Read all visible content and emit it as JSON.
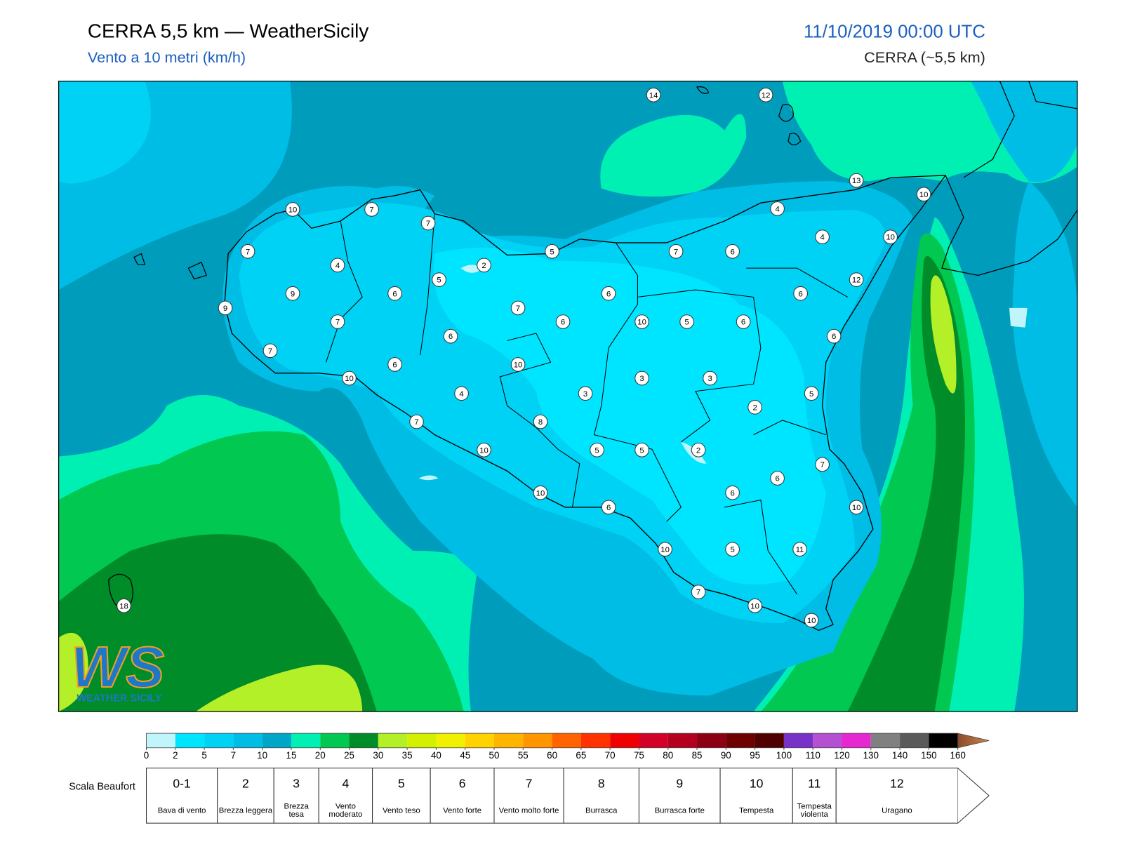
{
  "header": {
    "title": "CERRA 5,5 km — WeatherSicily",
    "subtitle": "Vento a 10 metri (km/h)",
    "datetime": "11/10/2019 00:00 UTC",
    "model": "CERRA (~5,5 km)"
  },
  "stations": [
    14,
    12,
    13,
    10,
    10,
    7,
    7,
    4,
    4,
    10,
    5,
    7,
    6,
    7,
    4,
    2,
    5,
    12,
    9,
    6,
    6,
    6,
    9,
    7,
    7,
    6,
    10,
    5,
    6,
    6,
    6,
    7,
    6,
    10,
    10,
    3,
    3,
    4,
    3,
    5,
    2,
    7,
    8,
    10,
    5,
    5,
    2,
    7,
    6,
    10,
    6,
    6,
    10,
    10,
    5,
    11,
    7,
    10,
    10,
    18
  ],
  "colorbar": {
    "ticks": [
      0,
      2,
      5,
      7,
      10,
      15,
      20,
      25,
      30,
      35,
      40,
      45,
      50,
      55,
      60,
      65,
      70,
      75,
      80,
      85,
      90,
      95,
      100,
      110,
      120,
      130,
      140,
      150,
      160
    ],
    "colors": [
      "#bff5fb",
      "#00e5ff",
      "#00d2f5",
      "#00bde6",
      "#00a6c8",
      "#00f0b4",
      "#00c850",
      "#008c28",
      "#b4f028",
      "#d2f000",
      "#f0f000",
      "#ffd200",
      "#ffb400",
      "#ff9600",
      "#ff6400",
      "#ff3200",
      "#f00000",
      "#d20028",
      "#b4001e",
      "#8c0014",
      "#6e0000",
      "#500000",
      "#7832c8",
      "#b450d2",
      "#e628d2",
      "#808080",
      "#5a5a5a",
      "#000000"
    ],
    "arrow_colors": [
      "#8c4a28",
      "#cd8550"
    ]
  },
  "beaufort": {
    "title": "Scala Beaufort",
    "levels": [
      {
        "force": "0-1",
        "desc": "Bava di vento"
      },
      {
        "force": "2",
        "desc": "Brezza leggera"
      },
      {
        "force": "3",
        "desc": "Brezza tesa"
      },
      {
        "force": "4",
        "desc": "Vento moderato"
      },
      {
        "force": "5",
        "desc": "Vento teso"
      },
      {
        "force": "6",
        "desc": "Vento forte"
      },
      {
        "force": "7",
        "desc": "Vento molto forte"
      },
      {
        "force": "8",
        "desc": "Burrasca"
      },
      {
        "force": "9",
        "desc": "Burrasca forte"
      },
      {
        "force": "10",
        "desc": "Tempesta"
      },
      {
        "force": "11",
        "desc": "Tempesta violenta"
      },
      {
        "force": "12",
        "desc": "Uragano"
      }
    ]
  },
  "logo": {
    "mark": "WS",
    "name": "WEATHER SICILY"
  }
}
